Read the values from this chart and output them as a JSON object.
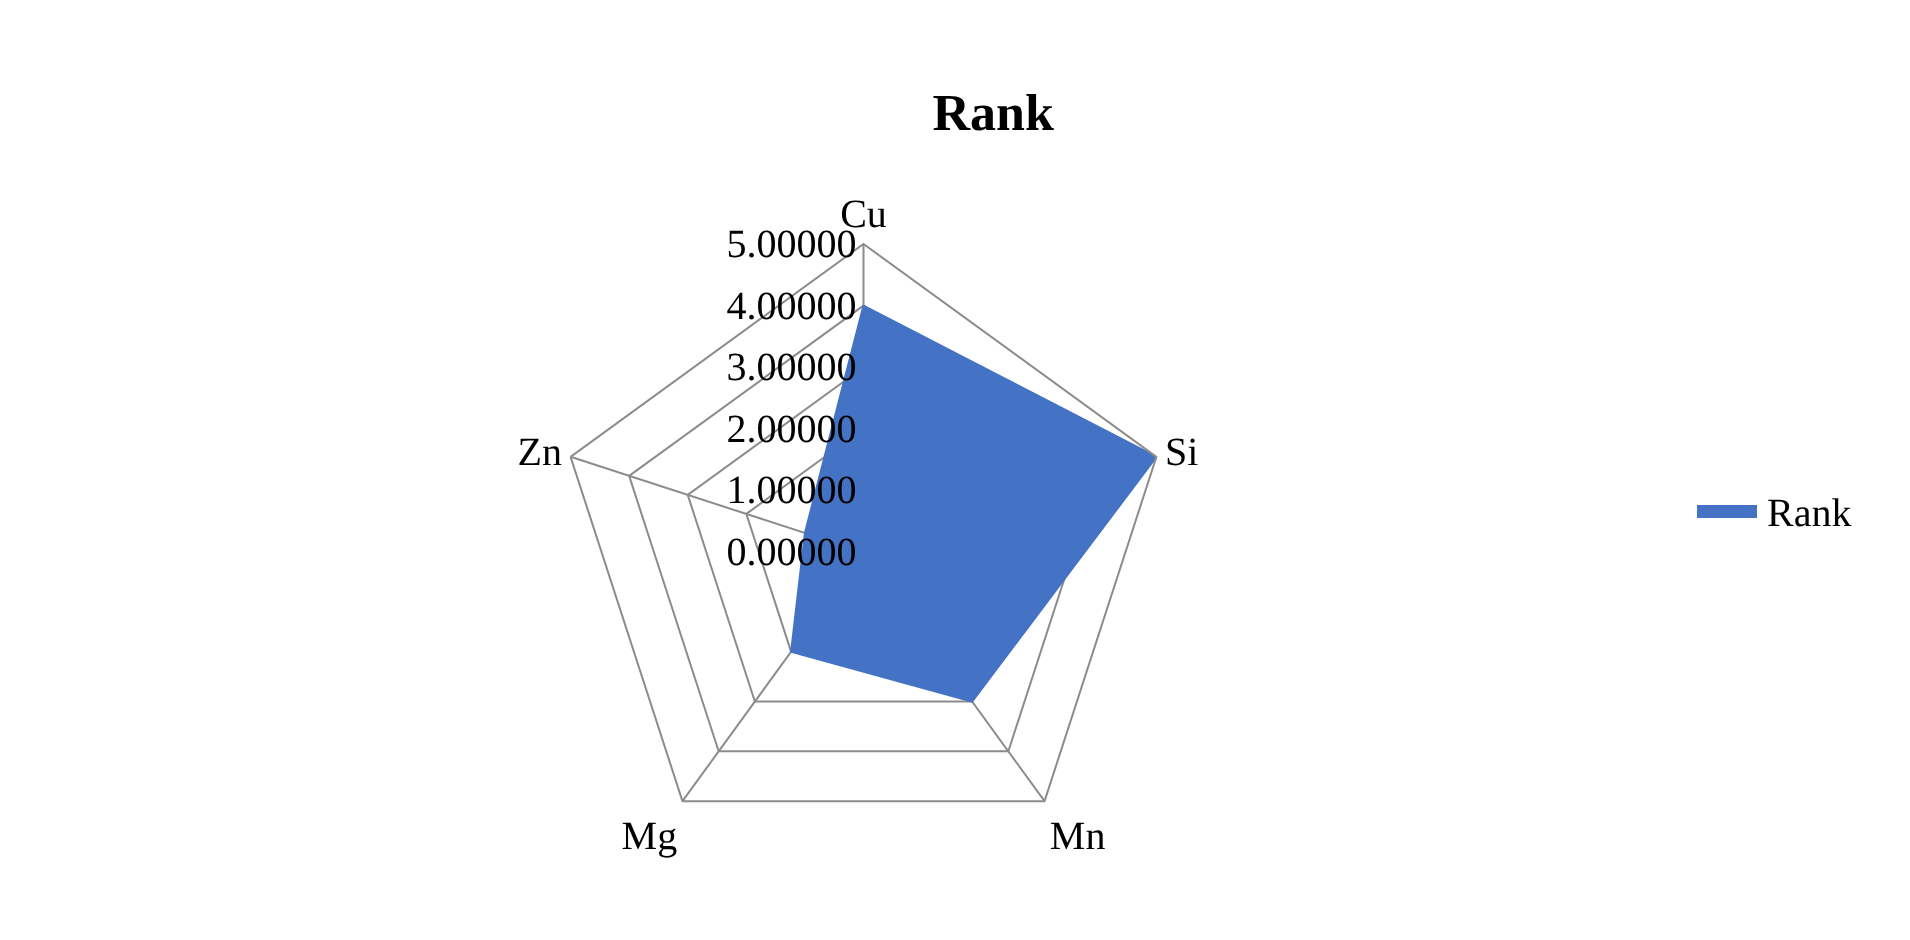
{
  "chart_data": {
    "type": "radar",
    "title": "Rank",
    "categories": [
      "Cu",
      "Si",
      "Mn",
      "Mg",
      "Zn"
    ],
    "series": [
      {
        "name": "Rank",
        "color": "#4472c4",
        "values": [
          4,
          5,
          3,
          2,
          1
        ]
      }
    ],
    "ylim": [
      0,
      5
    ],
    "yticks": [
      {
        "value": 0,
        "label": "0.00000"
      },
      {
        "value": 1,
        "label": "1.00000"
      },
      {
        "value": 2,
        "label": "2.00000"
      },
      {
        "value": 3,
        "label": "3.00000"
      },
      {
        "value": 4,
        "label": "4.00000"
      },
      {
        "value": 5,
        "label": "5.00000"
      }
    ],
    "grid": true,
    "legend": "right",
    "marker": "none"
  }
}
